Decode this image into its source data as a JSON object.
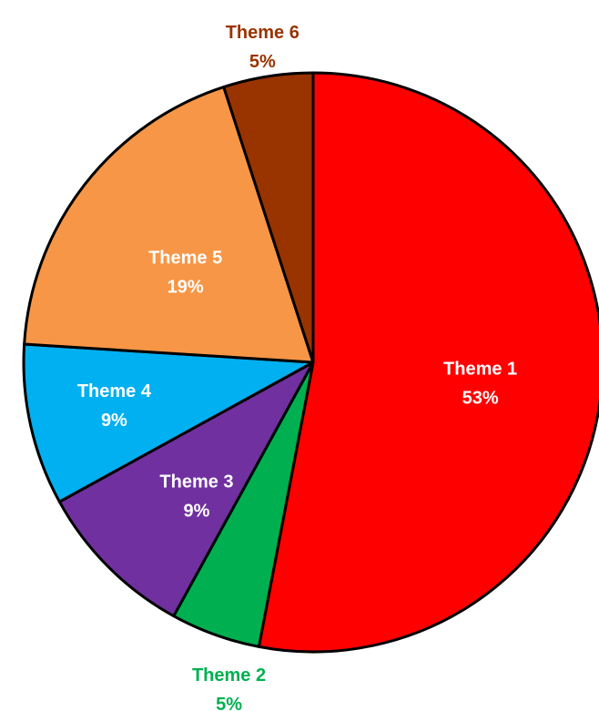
{
  "chart_data": {
    "type": "pie",
    "title": "",
    "slices": [
      {
        "label": "Theme 1",
        "value": 53,
        "value_label": "53%",
        "color": "#FF0000",
        "label_color": "#FFFFFF"
      },
      {
        "label": "Theme 2",
        "value": 5,
        "value_label": "5%",
        "color": "#00B050",
        "label_color": "#00B050"
      },
      {
        "label": "Theme 3",
        "value": 9,
        "value_label": "9%",
        "color": "#7030A0",
        "label_color": "#FFFFFF"
      },
      {
        "label": "Theme 4",
        "value": 9,
        "value_label": "9%",
        "color": "#00B0F0",
        "label_color": "#FFFFFF"
      },
      {
        "label": "Theme 5",
        "value": 19,
        "value_label": "19%",
        "color": "#F79646",
        "label_color": "#FFFFFF"
      },
      {
        "label": "Theme 6",
        "value": 5,
        "value_label": "5%",
        "color": "#993300",
        "label_color": "#993300"
      }
    ],
    "start_angle": "12 o'clock",
    "direction": "clockwise",
    "legend": "none"
  }
}
